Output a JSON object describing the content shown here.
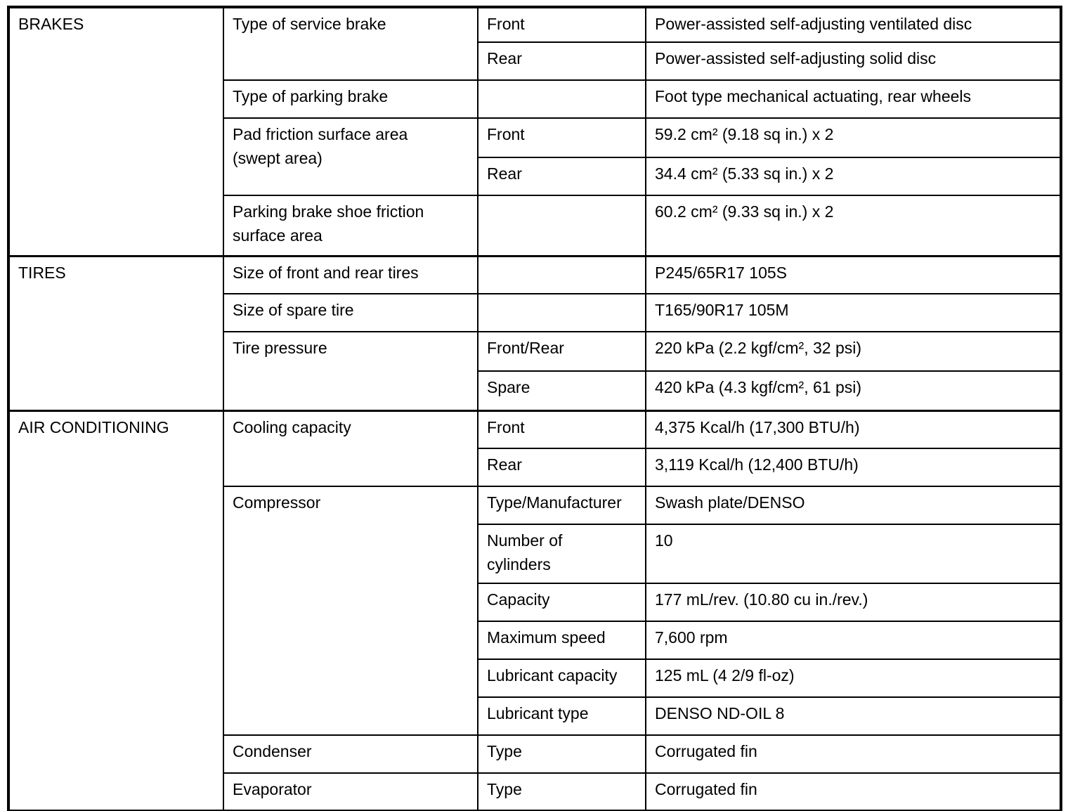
{
  "colors": {
    "background": "#ffffff",
    "border": "#000000",
    "text": "#000000"
  },
  "sections": [
    {
      "category": "BRAKES",
      "items": [
        {
          "label": "Type of service brake",
          "rows": [
            {
              "sub": "Front",
              "value": "Power-assisted self-adjusting ventilated disc"
            },
            {
              "sub": "Rear",
              "value": "Power-assisted self-adjusting solid disc"
            }
          ]
        },
        {
          "label": "Type of parking brake",
          "rows": [
            {
              "sub": "",
              "value": "Foot type mechanical actuating, rear wheels"
            }
          ]
        },
        {
          "label": "Pad friction surface area\n(swept area)",
          "rows": [
            {
              "sub": "Front",
              "value": "59.2 cm² (9.18 sq in.) x 2"
            },
            {
              "sub": "Rear",
              "value": "34.4 cm² (5.33 sq in.) x 2"
            }
          ]
        },
        {
          "label": "Parking brake shoe friction\nsurface area",
          "rows": [
            {
              "sub": "",
              "value": "60.2 cm² (9.33 sq in.) x 2"
            }
          ]
        }
      ]
    },
    {
      "category": "TIRES",
      "items": [
        {
          "label": "Size of front and rear tires",
          "rows": [
            {
              "sub": "",
              "value": "P245/65R17 105S"
            }
          ]
        },
        {
          "label": "Size of spare tire",
          "rows": [
            {
              "sub": "",
              "value": "T165/90R17 105M"
            }
          ]
        },
        {
          "label": "Tire pressure",
          "rows": [
            {
              "sub": "Front/Rear",
              "value": "220 kPa (2.2 kgf/cm², 32 psi)"
            },
            {
              "sub": "Spare",
              "value": "420 kPa (4.3 kgf/cm², 61 psi)"
            }
          ]
        }
      ]
    },
    {
      "category": "AIR CONDITIONING",
      "items": [
        {
          "label": "Cooling capacity",
          "rows": [
            {
              "sub": "Front",
              "value": "4,375 Kcal/h (17,300 BTU/h)"
            },
            {
              "sub": "Rear",
              "value": "3,119 Kcal/h (12,400 BTU/h)"
            }
          ]
        },
        {
          "label": "Compressor",
          "rows": [
            {
              "sub": "Type/Manufacturer",
              "value": "Swash plate/DENSO"
            },
            {
              "sub": "Number of\ncylinders",
              "value": "10"
            },
            {
              "sub": "Capacity",
              "value": "177 mL/rev. (10.80 cu in./rev.)"
            },
            {
              "sub": "Maximum speed",
              "value": "7,600 rpm"
            },
            {
              "sub": "Lubricant capacity",
              "value": "125 mL (4 2/9 fl-oz)"
            },
            {
              "sub": "Lubricant type",
              "value": "DENSO ND-OIL 8"
            }
          ]
        },
        {
          "label": "Condenser",
          "rows": [
            {
              "sub": "Type",
              "value": "Corrugated fin"
            }
          ]
        },
        {
          "label": "Evaporator",
          "rows": [
            {
              "sub": "Type",
              "value": "Corrugated fin"
            }
          ]
        }
      ]
    }
  ]
}
